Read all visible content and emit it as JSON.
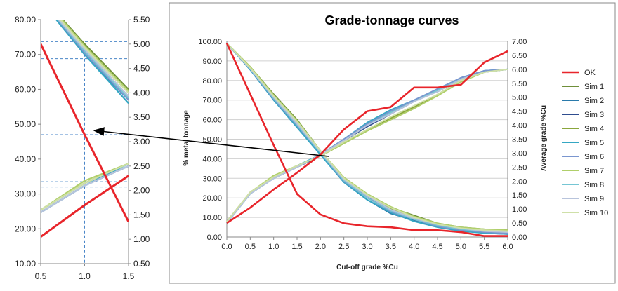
{
  "chart_data": [
    {
      "type": "line",
      "title": "Grade-tonnage curves",
      "xlabel": "Cut-off grade %Cu",
      "ylabel": "% metal tonnage",
      "y2label": "Average grade %Cu",
      "xlim": [
        0,
        6
      ],
      "ylim": [
        0,
        100
      ],
      "y2lim": [
        0,
        7
      ],
      "x_ticks": [
        "0.0",
        "0.5",
        "1.0",
        "1.5",
        "2.0",
        "2.5",
        "3.0",
        "3.5",
        "4.0",
        "4.5",
        "5.0",
        "5.5",
        "6.0"
      ],
      "y_ticks": [
        "0.00",
        "10.00",
        "20.00",
        "30.00",
        "40.00",
        "50.00",
        "60.00",
        "70.00",
        "80.00",
        "90.00",
        "100.00"
      ],
      "y2_ticks": [
        "0.00",
        "0.50",
        "1.00",
        "1.50",
        "2.00",
        "2.50",
        "3.00",
        "3.50",
        "4.00",
        "4.50",
        "5.00",
        "5.50",
        "6.00",
        "6.50",
        "7.00"
      ],
      "grid": true,
      "legend": "right",
      "x": [
        0,
        0.5,
        1.0,
        1.5,
        2.0,
        2.5,
        3.0,
        3.5,
        4.0,
        4.5,
        5.0,
        5.5,
        6.0
      ],
      "series": [
        {
          "name": "OK",
          "color": "#e8252b",
          "tonnage": [
            99,
            73,
            47,
            22,
            11.5,
            7,
            5.5,
            5,
            3.5,
            3.5,
            2.5,
            0.5,
            0.5
          ],
          "grade": [
            0.5,
            1.05,
            1.7,
            2.3,
            2.95,
            3.85,
            4.5,
            4.65,
            5.35,
            5.35,
            5.45,
            6.25,
            6.65
          ]
        },
        {
          "name": "Sim 1",
          "color": "#6f8f3a",
          "tonnage": [
            99,
            87,
            73,
            60,
            44,
            30,
            22,
            15,
            11,
            7,
            5,
            4,
            3.5
          ],
          "grade": [
            0.55,
            1.6,
            2.15,
            2.55,
            2.9,
            3.35,
            3.8,
            4.2,
            4.6,
            5.1,
            5.6,
            5.9,
            6.0
          ]
        },
        {
          "name": "Sim 2",
          "color": "#2a7aab",
          "tonnage": [
            99,
            85.5,
            70,
            57,
            43,
            28,
            19,
            12,
            8.5,
            5.5,
            3.5,
            2,
            1.5
          ],
          "grade": [
            0.5,
            1.55,
            2.1,
            2.5,
            2.95,
            3.5,
            4.05,
            4.5,
            4.9,
            5.25,
            5.7,
            5.95,
            6.0
          ]
        },
        {
          "name": "Sim 3",
          "color": "#2f4d8f",
          "tonnage": [
            99,
            86,
            71,
            58,
            43,
            29,
            21,
            13,
            9,
            6,
            4,
            2.5,
            2
          ],
          "grade": [
            0.5,
            1.55,
            2.1,
            2.5,
            2.9,
            3.45,
            3.95,
            4.4,
            4.85,
            5.25,
            5.65,
            5.9,
            6.0
          ]
        },
        {
          "name": "Sim 4",
          "color": "#8aa63c",
          "tonnage": [
            99,
            86.5,
            72,
            59,
            44,
            30,
            21.5,
            14.5,
            10,
            6.5,
            4.5,
            3.5,
            3
          ],
          "grade": [
            0.55,
            1.6,
            2.15,
            2.55,
            2.9,
            3.35,
            3.85,
            4.25,
            4.65,
            5.1,
            5.55,
            5.9,
            6.0
          ]
        },
        {
          "name": "Sim 5",
          "color": "#35a7c3",
          "tonnage": [
            99,
            85.5,
            70,
            56,
            42,
            28,
            19,
            12.5,
            8,
            5,
            3,
            2,
            1.5
          ],
          "grade": [
            0.5,
            1.55,
            2.1,
            2.55,
            2.95,
            3.5,
            4.1,
            4.55,
            4.9,
            5.2,
            5.65,
            5.95,
            6.0
          ]
        },
        {
          "name": "Sim 6",
          "color": "#7a96cf",
          "tonnage": [
            99,
            86,
            70.5,
            57,
            43,
            28.5,
            20,
            13,
            9,
            5.5,
            3.5,
            2.5,
            2
          ],
          "grade": [
            0.5,
            1.55,
            2.1,
            2.5,
            2.95,
            3.5,
            4.05,
            4.5,
            4.9,
            5.3,
            5.7,
            5.95,
            6.0
          ]
        },
        {
          "name": "Sim 7",
          "color": "#b0cf6a",
          "tonnage": [
            99,
            87,
            72.5,
            59.5,
            44,
            30.5,
            22,
            15.5,
            10.5,
            7,
            5,
            4,
            3.5
          ],
          "grade": [
            0.55,
            1.6,
            2.2,
            2.55,
            2.9,
            3.35,
            3.8,
            4.2,
            4.6,
            5.05,
            5.55,
            5.9,
            6.0
          ]
        },
        {
          "name": "Sim 8",
          "color": "#76c6d4",
          "tonnage": [
            99,
            86,
            71,
            57.5,
            43,
            29,
            20,
            13.5,
            9,
            6,
            4,
            3,
            2.5
          ],
          "grade": [
            0.5,
            1.55,
            2.1,
            2.5,
            2.95,
            3.45,
            4.0,
            4.45,
            4.85,
            5.25,
            5.65,
            5.9,
            6.0
          ]
        },
        {
          "name": "Sim 9",
          "color": "#b8c4dc",
          "tonnage": [
            99,
            86,
            71.5,
            58,
            43.5,
            29.5,
            21,
            14,
            9.5,
            6.5,
            4.5,
            3,
            2.5
          ],
          "grade": [
            0.5,
            1.55,
            2.1,
            2.5,
            2.95,
            3.45,
            4.0,
            4.4,
            4.85,
            5.2,
            5.65,
            5.9,
            6.0
          ]
        },
        {
          "name": "Sim 10",
          "color": "#cfe0a8",
          "tonnage": [
            99,
            86.5,
            72,
            59,
            44,
            30,
            21.5,
            15,
            10,
            6.5,
            4.5,
            3.5,
            3
          ],
          "grade": [
            0.55,
            1.6,
            2.15,
            2.55,
            2.9,
            3.4,
            3.85,
            4.3,
            4.7,
            5.1,
            5.6,
            5.9,
            6.0
          ]
        }
      ]
    },
    {
      "type": "line",
      "title": "",
      "xlim": [
        0.5,
        1.5
      ],
      "ylim": [
        10,
        80
      ],
      "y2lim": [
        0.5,
        5.5
      ],
      "x_ticks": [
        "0.5",
        "1.0",
        "1.5"
      ],
      "y_ticks": [
        "10.00",
        "20.00",
        "30.00",
        "40.00",
        "50.00",
        "60.00",
        "70.00",
        "80.00"
      ],
      "y2_ticks": [
        "0.50",
        "1.00",
        "1.50",
        "2.00",
        "2.50",
        "3.00",
        "3.50",
        "4.00",
        "4.50",
        "5.00",
        "5.50"
      ],
      "grid": false,
      "note": "zoomed view of the main chart between cut-off grades 0.5 and 1.5"
    }
  ]
}
